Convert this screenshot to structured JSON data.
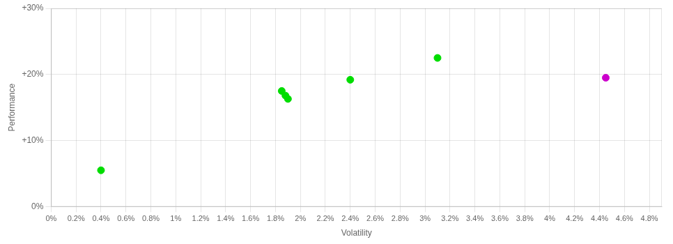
{
  "chart_data": {
    "type": "scatter",
    "xlabel": "Volatility",
    "ylabel": "Performance",
    "series": [
      {
        "color": "#00dd00",
        "x": [
          0.004,
          0.0185,
          0.019,
          0.0188,
          0.024,
          0.031
        ],
        "values": [
          0.055,
          0.175,
          0.163,
          0.168,
          0.192,
          0.225
        ]
      },
      {
        "color": "#cc00cc",
        "x": [
          0.0445
        ],
        "values": [
          0.195
        ]
      }
    ],
    "xlim": [
      0,
      0.049
    ],
    "xticks": [
      {
        "value": 0.0,
        "label": "0%"
      },
      {
        "value": 0.002,
        "label": "0.2%"
      },
      {
        "value": 0.004,
        "label": "0.4%"
      },
      {
        "value": 0.006,
        "label": "0.6%"
      },
      {
        "value": 0.008,
        "label": "0.8%"
      },
      {
        "value": 0.01,
        "label": "1%"
      },
      {
        "value": 0.012,
        "label": "1.2%"
      },
      {
        "value": 0.014,
        "label": "1.4%"
      },
      {
        "value": 0.016,
        "label": "1.6%"
      },
      {
        "value": 0.018,
        "label": "1.8%"
      },
      {
        "value": 0.02,
        "label": "2%"
      },
      {
        "value": 0.022,
        "label": "2.2%"
      },
      {
        "value": 0.024,
        "label": "2.4%"
      },
      {
        "value": 0.026,
        "label": "2.6%"
      },
      {
        "value": 0.028,
        "label": "2.8%"
      },
      {
        "value": 0.03,
        "label": "3%"
      },
      {
        "value": 0.032,
        "label": "3.2%"
      },
      {
        "value": 0.034,
        "label": "3.4%"
      },
      {
        "value": 0.036,
        "label": "3.6%"
      },
      {
        "value": 0.038,
        "label": "3.8%"
      },
      {
        "value": 0.04,
        "label": "4%"
      },
      {
        "value": 0.042,
        "label": "4.2%"
      },
      {
        "value": 0.044,
        "label": "4.4%"
      },
      {
        "value": 0.046,
        "label": "4.6%"
      },
      {
        "value": 0.048,
        "label": "4.8%"
      }
    ],
    "ylim": [
      0.0,
      0.3
    ],
    "yticks": [
      {
        "value": 0.0,
        "label": "0%"
      },
      {
        "value": 0.1,
        "label": "+10%"
      },
      {
        "value": 0.2,
        "label": "+20%"
      },
      {
        "value": 0.3,
        "label": "+30%"
      }
    ],
    "grid": true
  }
}
